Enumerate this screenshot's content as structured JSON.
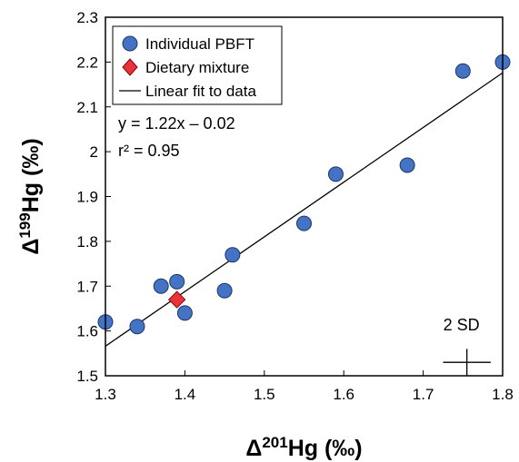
{
  "chart_data": {
    "type": "scatter",
    "xlabel": {
      "base": "Δ",
      "sup": "201",
      "rest": "Hg (‰)"
    },
    "ylabel": {
      "base": "Δ",
      "sup": "199",
      "rest": "Hg (‰)"
    },
    "xlim": [
      1.3,
      1.8
    ],
    "ylim": [
      1.5,
      2.3
    ],
    "x_ticks": [
      "1.3",
      "1.4",
      "1.5",
      "1.6",
      "1.7",
      "1.8"
    ],
    "y_ticks": [
      "1.5",
      "1.6",
      "1.7",
      "1.8",
      "1.9",
      "2",
      "2.1",
      "2.2",
      "2.3"
    ],
    "grid": false,
    "legend_placement": "top-left",
    "series": [
      {
        "name": "Individual PBFT",
        "marker": "circle",
        "color": "#4472C4",
        "points": [
          [
            1.3,
            1.62
          ],
          [
            1.34,
            1.61
          ],
          [
            1.37,
            1.7
          ],
          [
            1.39,
            1.71
          ],
          [
            1.4,
            1.64
          ],
          [
            1.45,
            1.69
          ],
          [
            1.46,
            1.77
          ],
          [
            1.55,
            1.84
          ],
          [
            1.59,
            1.95
          ],
          [
            1.68,
            1.97
          ],
          [
            1.75,
            2.18
          ],
          [
            1.8,
            2.2
          ]
        ]
      },
      {
        "name": "Dietary mixture",
        "marker": "diamond",
        "color": "#E8333A",
        "points": [
          [
            1.39,
            1.67
          ]
        ]
      },
      {
        "name": "Linear fit to data",
        "marker": "line",
        "color": "#000000",
        "slope": 1.22,
        "intercept": -0.02,
        "x_range": [
          1.3,
          1.8
        ]
      }
    ],
    "annotations": {
      "equation": "y = 1.22x – 0.02",
      "r2": "r² = 0.95",
      "error_label": "2 SD",
      "error_cross": {
        "x": 1.755,
        "y": 1.53,
        "x_err": 0.03,
        "y_err": 0.03
      }
    }
  }
}
